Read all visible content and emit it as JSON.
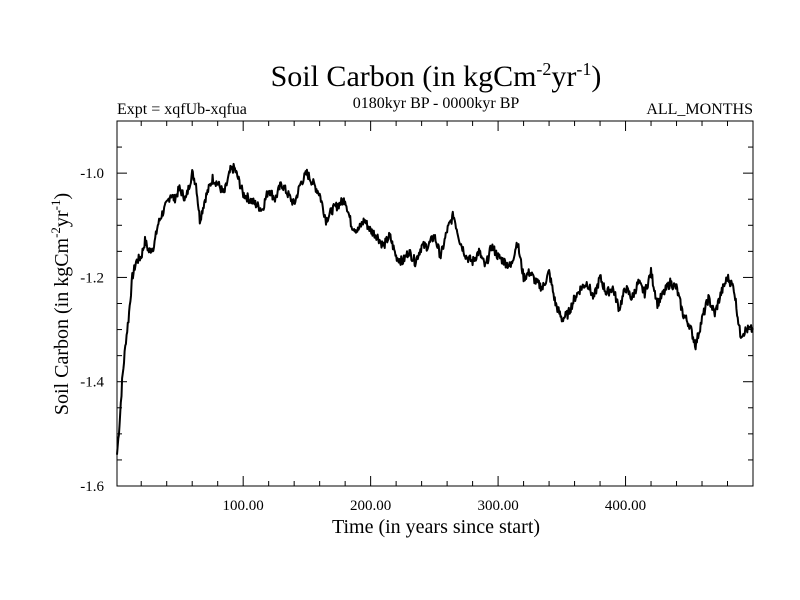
{
  "chart_data": {
    "type": "line",
    "title": {
      "prefix": "Soil Carbon (in kgCm",
      "exp1": "-2",
      "mid": "yr",
      "exp2": "-1",
      "suffix": ")"
    },
    "subtitle_left": "Expt = xqfUb-xqfua",
    "subtitle_center": "0180kyr BP - 0000kyr BP",
    "subtitle_right": "ALL_MONTHS",
    "xlabel": "Time (in years since start)",
    "ylabel": {
      "prefix": "Soil Carbon (in kgCm",
      "exp1": "-2",
      "mid": "yr",
      "exp2": "-1",
      "suffix": ")"
    },
    "xlim": [
      1,
      500
    ],
    "ylim": [
      -1.6,
      -0.9
    ],
    "xticks_major": [
      100,
      200,
      300,
      400
    ],
    "xtick_labels": [
      "100.00",
      "200.00",
      "300.00",
      "400.00"
    ],
    "yticks_major": [
      -1.6,
      -1.4,
      -1.2,
      -1.0
    ],
    "ytick_labels": [
      "-1.6",
      "-1.4",
      "-1.2",
      "-1.0"
    ],
    "series": [
      {
        "name": "Soil Carbon",
        "color": "#000000",
        "x": [
          1,
          3,
          5,
          8,
          10,
          13,
          16,
          20,
          23,
          26,
          30,
          33,
          36,
          40,
          43,
          46,
          50,
          55,
          60,
          63,
          66,
          70,
          73,
          76,
          80,
          85,
          90,
          93,
          96,
          100,
          105,
          110,
          115,
          120,
          125,
          130,
          135,
          140,
          145,
          150,
          155,
          160,
          165,
          170,
          175,
          180,
          185,
          190,
          195,
          200,
          205,
          210,
          215,
          220,
          225,
          230,
          235,
          240,
          245,
          250,
          255,
          260,
          265,
          270,
          275,
          280,
          285,
          290,
          295,
          300,
          305,
          310,
          315,
          320,
          325,
          330,
          335,
          340,
          345,
          350,
          355,
          360,
          365,
          370,
          375,
          380,
          385,
          390,
          395,
          400,
          405,
          410,
          415,
          420,
          425,
          430,
          435,
          440,
          445,
          450,
          455,
          460,
          465,
          470,
          475,
          480,
          485,
          490,
          495,
          500
        ],
        "y": [
          -1.54,
          -1.48,
          -1.4,
          -1.32,
          -1.28,
          -1.2,
          -1.17,
          -1.16,
          -1.13,
          -1.15,
          -1.14,
          -1.1,
          -1.08,
          -1.06,
          -1.04,
          -1.05,
          -1.03,
          -1.05,
          -1.0,
          -1.02,
          -1.09,
          -1.05,
          -1.03,
          -1.01,
          -1.02,
          -1.04,
          -0.995,
          -0.99,
          -1.01,
          -1.04,
          -1.05,
          -1.06,
          -1.07,
          -1.03,
          -1.05,
          -1.02,
          -1.04,
          -1.06,
          -1.02,
          -1.0,
          -1.02,
          -1.04,
          -1.09,
          -1.07,
          -1.06,
          -1.05,
          -1.1,
          -1.11,
          -1.09,
          -1.11,
          -1.12,
          -1.14,
          -1.12,
          -1.16,
          -1.17,
          -1.15,
          -1.17,
          -1.14,
          -1.14,
          -1.12,
          -1.16,
          -1.11,
          -1.08,
          -1.13,
          -1.16,
          -1.17,
          -1.15,
          -1.18,
          -1.14,
          -1.16,
          -1.17,
          -1.18,
          -1.13,
          -1.2,
          -1.19,
          -1.21,
          -1.22,
          -1.19,
          -1.25,
          -1.28,
          -1.27,
          -1.24,
          -1.22,
          -1.21,
          -1.24,
          -1.2,
          -1.23,
          -1.22,
          -1.26,
          -1.22,
          -1.24,
          -1.21,
          -1.23,
          -1.19,
          -1.25,
          -1.23,
          -1.21,
          -1.22,
          -1.27,
          -1.29,
          -1.33,
          -1.28,
          -1.24,
          -1.27,
          -1.23,
          -1.2,
          -1.22,
          -1.31,
          -1.3,
          -1.3
        ]
      }
    ]
  }
}
